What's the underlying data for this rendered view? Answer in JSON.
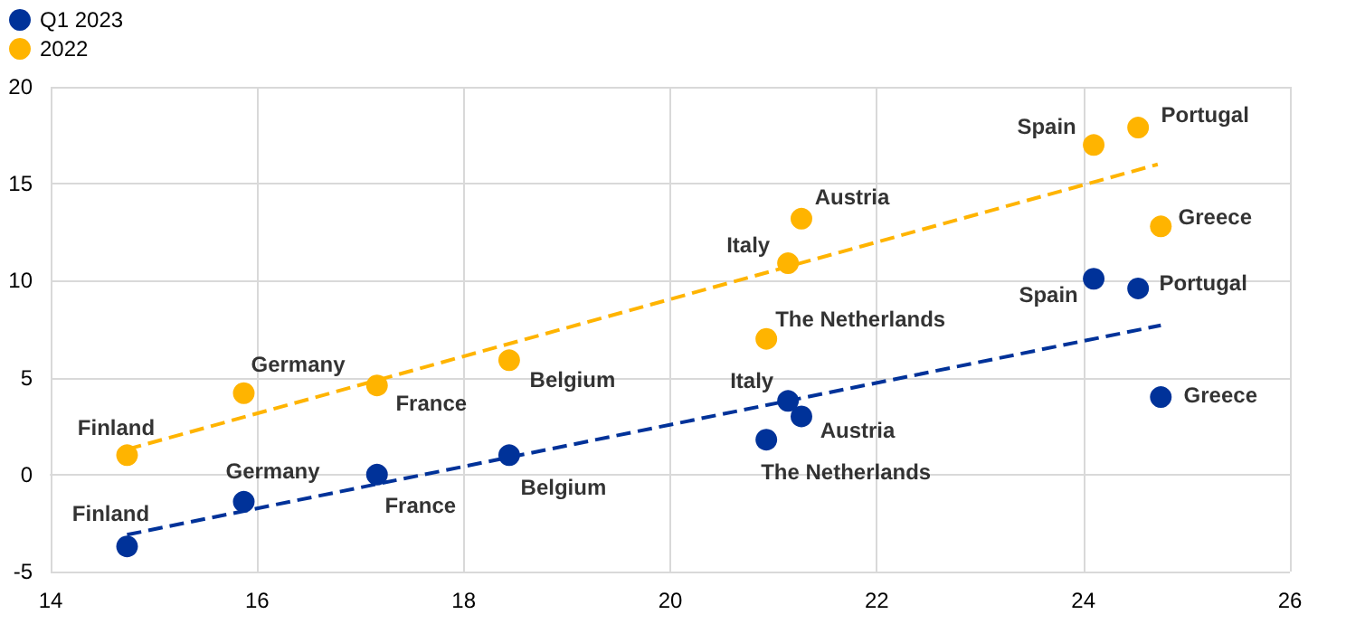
{
  "chart_data": {
    "type": "scatter",
    "xlim": [
      14,
      26
    ],
    "xticks": [
      14,
      16,
      18,
      20,
      22,
      24,
      26
    ],
    "ylim": [
      -5,
      20
    ],
    "yticks": [
      -5,
      0,
      5,
      10,
      15,
      20
    ],
    "grid": true,
    "legend": "top left",
    "marker": "circle",
    "series": [
      {
        "name": "Q1 2023",
        "color": "#003299",
        "x": [
          14.74,
          15.87,
          17.16,
          18.44,
          21.14,
          21.27,
          20.93,
          24.1,
          24.53,
          24.75
        ],
        "values": [
          -3.7,
          -1.4,
          0.0,
          1.0,
          3.8,
          3.0,
          1.8,
          10.1,
          9.6,
          4.0
        ]
      },
      {
        "name": "2022",
        "color": "#ffb400",
        "x": [
          14.74,
          15.87,
          17.16,
          18.44,
          21.14,
          21.27,
          20.93,
          24.1,
          24.53,
          24.75
        ],
        "values": [
          1.0,
          4.2,
          4.6,
          5.9,
          10.9,
          13.2,
          7.0,
          17.0,
          17.9,
          12.8
        ]
      },
      {
        "type": "line",
        "color": "#003299",
        "line_style": "dashed",
        "marker": "none",
        "x": [
          14.74,
          24.75
        ],
        "values": [
          -3.1,
          7.7
        ]
      },
      {
        "type": "line",
        "color": "#ffb400",
        "line_style": "dashed",
        "marker": "none",
        "x": [
          14.74,
          24.72
        ],
        "values": [
          1.3,
          16.0
        ]
      }
    ],
    "annotations": [
      {
        "text": "Finland",
        "x": 14.74,
        "y": -3.7
      },
      {
        "text": "Germany",
        "x": 15.87,
        "y": -1.4
      },
      {
        "text": "France",
        "x": 17.16,
        "y": 0.0
      },
      {
        "text": "Belgium",
        "x": 18.44,
        "y": 1.0
      },
      {
        "text": "Italy",
        "x": 21.14,
        "y": 3.8
      },
      {
        "text": "Austria",
        "x": 21.27,
        "y": 3.0
      },
      {
        "text": "The Netherlands",
        "x": 20.93,
        "y": 1.8
      },
      {
        "text": "Spain",
        "x": 24.1,
        "y": 10.1
      },
      {
        "text": "Portugal",
        "x": 24.53,
        "y": 9.6
      },
      {
        "text": "Greece",
        "x": 24.75,
        "y": 4.0
      },
      {
        "text": "Finland",
        "x": 14.74,
        "y": 1.0
      },
      {
        "text": "Germany",
        "x": 15.87,
        "y": 4.2
      },
      {
        "text": "France",
        "x": 17.16,
        "y": 4.6
      },
      {
        "text": "Belgium",
        "x": 18.44,
        "y": 5.9
      },
      {
        "text": "Italy",
        "x": 21.14,
        "y": 10.9
      },
      {
        "text": "Austria",
        "x": 21.27,
        "y": 13.2
      },
      {
        "text": "The Netherlands",
        "x": 20.93,
        "y": 7.0
      },
      {
        "text": "Spain",
        "x": 24.1,
        "y": 17.0
      },
      {
        "text": "Portugal",
        "x": 24.53,
        "y": 17.9
      },
      {
        "text": "Greece",
        "x": 24.75,
        "y": 12.8
      }
    ]
  }
}
